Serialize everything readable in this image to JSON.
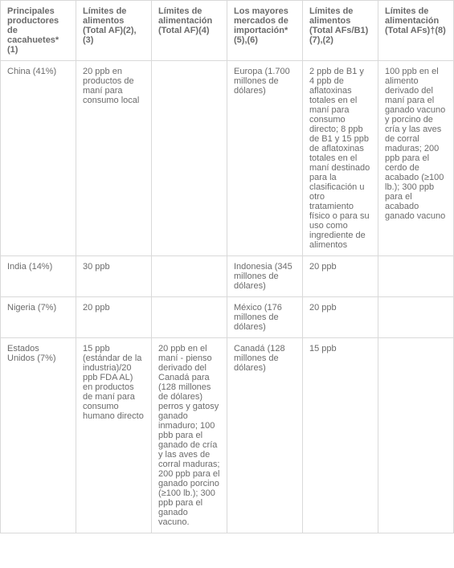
{
  "table": {
    "columns": [
      "Principales productores de cacahuetes* (1)",
      "Límites de alimentos (Total AF)(2),(3)",
      "Límites de alimentación (Total AF)(4)",
      "Los mayores mercados de importación* (5),(6)",
      "Límites de alimentos (Total AFs/B1) (7),(2)",
      "Límites de alimentación (Total AFs)†(8)"
    ],
    "rows": [
      {
        "c0": "China (41%)",
        "c1": "20 ppb en productos de maní para consumo local",
        "c2": "",
        "c3": "Europa (1.700 millones de dólares)",
        "c4": "2 ppb de B1 y 4 ppb de aflatoxinas totales en el maní para consumo directo; 8 ppb de B1 y 15 ppb de aflatoxinas totales en el maní destinado para la clasificación u otro tratamiento físico o para su uso como ingrediente de alimentos",
        "c5": "100 ppb en el alimento derivado del maní para el ganado vacuno y porcino de cría y las aves de corral maduras; 200 ppb para el cerdo de acabado (≥100 lb.); 300 ppb para el acabado ganado vacuno"
      },
      {
        "c0": "India (14%)",
        "c1": "30 ppb",
        "c2": "",
        "c3": "Indonesia (345 millones de dólares)",
        "c4": "20 ppb",
        "c5": ""
      },
      {
        "c0": "Nigeria (7%)",
        "c1": "20 ppb",
        "c2": "",
        "c3": "México (176 millones de dólares)",
        "c4": "20 ppb",
        "c5": ""
      },
      {
        "c0": "Estados Unidos (7%)",
        "c1": "15 ppb (estándar de la industria)/20 ppb FDA AL) en productos de maní para consumo humano directo",
        "c2": "20 ppb en el maní - pienso derivado del Canadá para (128 millones de dólares) perros y gatosy ganado inmaduro; 100 pbb para el ganado de cría y las aves de corral maduras; 200 ppb para el ganado porcino (≥100 lb.); 300 ppb para el ganado vacuno.",
        "c3": "Canadá (128 millones de dólares)",
        "c4": "15 ppb",
        "c5": ""
      }
    ],
    "style": {
      "border_color": "#d9d9d9",
      "text_color": "#6b6b6b",
      "background_color": "#ffffff",
      "font_size": 11,
      "cell_padding": "7px 8px"
    }
  }
}
